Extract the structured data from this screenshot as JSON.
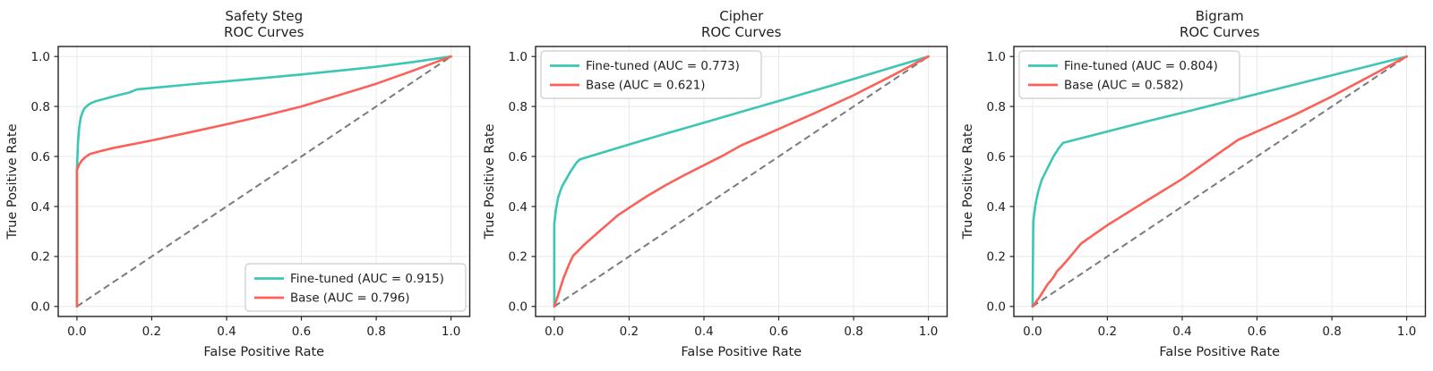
{
  "page": {
    "background": "#ffffff"
  },
  "styles": {
    "fine_tuned_color": "#3cc7b4",
    "base_color": "#fb6159",
    "diagonal_color": "#7a7a7a",
    "grid_color": "#e8e8e8",
    "spine_color": "#222222",
    "text_color": "#1f1f1f",
    "legend_border_color": "#cccccc",
    "legend_bg": "rgba(255,255,255,0.9)"
  },
  "axes_defaults": {
    "xlabel": "False Positive Rate",
    "ylabel": "True Positive Rate",
    "tick_values": [
      0.0,
      0.2,
      0.4,
      0.6,
      0.8,
      1.0
    ],
    "tick_labels": [
      "0.0",
      "0.2",
      "0.4",
      "0.6",
      "0.8",
      "1.0"
    ],
    "xlim": [
      0,
      1
    ],
    "ylim": [
      0,
      1
    ],
    "grid": true
  },
  "chart_data": [
    {
      "type": "line",
      "title": "Safety Steg\nROC Curves",
      "title_lines": [
        "Safety Steg",
        "ROC Curves"
      ],
      "xlabel": "False Positive Rate",
      "ylabel": "True Positive Rate",
      "xlim": [
        0,
        1
      ],
      "ylim": [
        0,
        1
      ],
      "grid": true,
      "reference_diagonal": true,
      "legend_loc": "lower right",
      "series": [
        {
          "name": "Fine-tuned",
          "auc": 0.915,
          "label": "Fine-tuned (AUC = 0.915)",
          "color": "fine_tuned",
          "points": [
            [
              0,
              0
            ],
            [
              0,
              0.55
            ],
            [
              0.003,
              0.655
            ],
            [
              0.006,
              0.715
            ],
            [
              0.01,
              0.755
            ],
            [
              0.015,
              0.777
            ],
            [
              0.02,
              0.792
            ],
            [
              0.03,
              0.806
            ],
            [
              0.04,
              0.815
            ],
            [
              0.05,
              0.821
            ],
            [
              0.08,
              0.833
            ],
            [
              0.11,
              0.845
            ],
            [
              0.14,
              0.856
            ],
            [
              0.16,
              0.868
            ],
            [
              0.2,
              0.874
            ],
            [
              0.3,
              0.888
            ],
            [
              0.4,
              0.901
            ],
            [
              0.5,
              0.914
            ],
            [
              0.6,
              0.928
            ],
            [
              0.7,
              0.943
            ],
            [
              0.8,
              0.959
            ],
            [
              0.9,
              0.978
            ],
            [
              1,
              1
            ]
          ]
        },
        {
          "name": "Base",
          "auc": 0.796,
          "label": "Base (AUC = 0.796)",
          "color": "base",
          "points": [
            [
              0,
              0
            ],
            [
              0,
              0.545
            ],
            [
              0.006,
              0.568
            ],
            [
              0.012,
              0.582
            ],
            [
              0.022,
              0.597
            ],
            [
              0.035,
              0.61
            ],
            [
              0.06,
              0.62
            ],
            [
              0.1,
              0.635
            ],
            [
              0.2,
              0.664
            ],
            [
              0.3,
              0.696
            ],
            [
              0.4,
              0.729
            ],
            [
              0.5,
              0.763
            ],
            [
              0.6,
              0.8
            ],
            [
              0.7,
              0.845
            ],
            [
              0.8,
              0.891
            ],
            [
              0.9,
              0.944
            ],
            [
              1,
              1
            ]
          ]
        }
      ]
    },
    {
      "type": "line",
      "title": "Cipher\nROC Curves",
      "title_lines": [
        "Cipher",
        "ROC Curves"
      ],
      "xlabel": "False Positive Rate",
      "ylabel": "True Positive Rate",
      "xlim": [
        0,
        1
      ],
      "ylim": [
        0,
        1
      ],
      "grid": true,
      "reference_diagonal": true,
      "legend_loc": "upper left",
      "series": [
        {
          "name": "Fine-tuned",
          "auc": 0.773,
          "label": "Fine-tuned (AUC = 0.773)",
          "color": "fine_tuned",
          "points": [
            [
              0,
              0
            ],
            [
              0,
              0.33
            ],
            [
              0.004,
              0.385
            ],
            [
              0.01,
              0.435
            ],
            [
              0.02,
              0.478
            ],
            [
              0.032,
              0.51
            ],
            [
              0.045,
              0.544
            ],
            [
              0.06,
              0.576
            ],
            [
              0.068,
              0.588
            ],
            [
              0.1,
              0.603
            ],
            [
              0.2,
              0.648
            ],
            [
              0.3,
              0.692
            ],
            [
              0.4,
              0.735
            ],
            [
              0.5,
              0.779
            ],
            [
              0.6,
              0.822
            ],
            [
              0.7,
              0.866
            ],
            [
              0.8,
              0.91
            ],
            [
              0.9,
              0.955
            ],
            [
              1,
              1
            ]
          ]
        },
        {
          "name": "Base",
          "auc": 0.621,
          "label": "Base (AUC = 0.621)",
          "color": "base",
          "points": [
            [
              0,
              0
            ],
            [
              0.01,
              0.045
            ],
            [
              0.025,
              0.115
            ],
            [
              0.04,
              0.17
            ],
            [
              0.05,
              0.202
            ],
            [
              0.08,
              0.247
            ],
            [
              0.12,
              0.3
            ],
            [
              0.17,
              0.365
            ],
            [
              0.2,
              0.395
            ],
            [
              0.25,
              0.443
            ],
            [
              0.3,
              0.487
            ],
            [
              0.35,
              0.527
            ],
            [
              0.4,
              0.565
            ],
            [
              0.45,
              0.603
            ],
            [
              0.5,
              0.645
            ],
            [
              0.55,
              0.677
            ],
            [
              0.6,
              0.71
            ],
            [
              0.7,
              0.776
            ],
            [
              0.8,
              0.845
            ],
            [
              0.9,
              0.921
            ],
            [
              1,
              1
            ]
          ]
        }
      ]
    },
    {
      "type": "line",
      "title": "Bigram\nROC Curves",
      "title_lines": [
        "Bigram",
        "ROC Curves"
      ],
      "xlabel": "False Positive Rate",
      "ylabel": "True Positive Rate",
      "xlim": [
        0,
        1
      ],
      "ylim": [
        0,
        1
      ],
      "grid": true,
      "reference_diagonal": true,
      "legend_loc": "upper left",
      "series": [
        {
          "name": "Fine-tuned",
          "auc": 0.804,
          "label": "Fine-tuned (AUC = 0.804)",
          "color": "fine_tuned",
          "points": [
            [
              0,
              0
            ],
            [
              0.002,
              0.34
            ],
            [
              0.008,
              0.41
            ],
            [
              0.015,
              0.46
            ],
            [
              0.025,
              0.508
            ],
            [
              0.04,
              0.553
            ],
            [
              0.055,
              0.598
            ],
            [
              0.07,
              0.633
            ],
            [
              0.082,
              0.655
            ],
            [
              0.2,
              0.7
            ],
            [
              0.3,
              0.738
            ],
            [
              0.4,
              0.775
            ],
            [
              0.6,
              0.85
            ],
            [
              0.8,
              0.925
            ],
            [
              1,
              1
            ]
          ]
        },
        {
          "name": "Base",
          "auc": 0.582,
          "label": "Base (AUC = 0.582)",
          "color": "base",
          "points": [
            [
              0,
              0
            ],
            [
              0.02,
              0.04
            ],
            [
              0.04,
              0.088
            ],
            [
              0.055,
              0.115
            ],
            [
              0.065,
              0.14
            ],
            [
              0.08,
              0.163
            ],
            [
              0.1,
              0.198
            ],
            [
              0.115,
              0.225
            ],
            [
              0.13,
              0.252
            ],
            [
              0.2,
              0.325
            ],
            [
              0.3,
              0.418
            ],
            [
              0.4,
              0.51
            ],
            [
              0.5,
              0.615
            ],
            [
              0.55,
              0.667
            ],
            [
              0.6,
              0.7
            ],
            [
              0.7,
              0.766
            ],
            [
              0.8,
              0.84
            ],
            [
              0.9,
              0.92
            ],
            [
              1,
              1
            ]
          ]
        }
      ]
    }
  ]
}
